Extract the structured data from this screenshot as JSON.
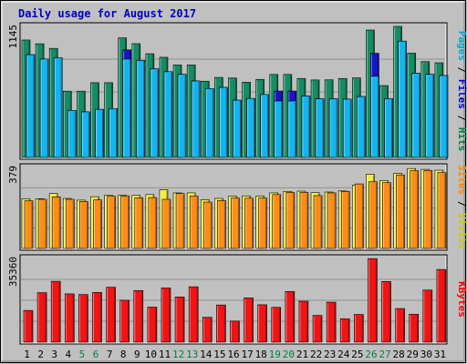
{
  "chart_data": {
    "type": "bar",
    "title": "Daily usage for August 2017",
    "categories": [
      "1",
      "2",
      "3",
      "4",
      "5",
      "6",
      "7",
      "8",
      "9",
      "10",
      "11",
      "12",
      "13",
      "14",
      "15",
      "16",
      "17",
      "18",
      "19",
      "20",
      "21",
      "22",
      "23",
      "24",
      "25",
      "26",
      "27",
      "28",
      "29",
      "30",
      "31"
    ],
    "weekend_days": [
      "5",
      "6",
      "12",
      "13",
      "19",
      "20",
      "26",
      "27"
    ],
    "panels": [
      {
        "name": "hits-files-pages",
        "ymax_label": "1145",
        "ylim": [
          0,
          1145
        ],
        "grid": true,
        "legend": [
          {
            "text": "Pages",
            "color": "#00aacc"
          },
          {
            "text": " / ",
            "color": "#000000"
          },
          {
            "text": "Files",
            "color": "#0000cc"
          },
          {
            "text": " / ",
            "color": "#000000"
          },
          {
            "text": "Hits",
            "color": "#008040"
          }
        ],
        "series": [
          {
            "name": "Hits",
            "color": "#148c64",
            "values": [
              1026,
              993,
              953,
              579,
              579,
              653,
              653,
              1045,
              994,
              906,
              875,
              808,
              808,
              666,
              699,
              694,
              657,
              682,
              725,
              725,
              690,
              677,
              678,
              690,
              695,
              1113,
              628,
              1145,
              911,
              837,
              827
            ]
          },
          {
            "name": "Files",
            "color": "#1414c8",
            "values": [
              898,
              860,
              872,
              411,
              398,
              420,
              427,
              940,
              848,
              774,
              749,
              726,
              668,
              602,
              612,
              500,
              515,
              550,
              580,
              580,
              537,
              512,
              512,
              509,
              532,
              910,
              514,
              1016,
              735,
              726,
              716
            ]
          },
          {
            "name": "Pages",
            "color": "#14b4f0",
            "values": [
              898,
              860,
              872,
              411,
              398,
              420,
              427,
              859,
              848,
              774,
              749,
              726,
              668,
              602,
              612,
              500,
              515,
              550,
              493,
              493,
              537,
              512,
              512,
              509,
              532,
              709,
              514,
              1016,
              735,
              726,
              716
            ]
          }
        ]
      },
      {
        "name": "visits-sites",
        "ymax_label": "379",
        "ylim": [
          0,
          379
        ],
        "grid": true,
        "legend": [
          {
            "text": "Sites",
            "color": "#ff8800"
          },
          {
            "text": " / ",
            "color": "#000000"
          },
          {
            "text": "Visits",
            "color": "#cccc00"
          }
        ],
        "series": [
          {
            "name": "Visits",
            "color": "#f0f03c",
            "values": [
              232,
              233,
              257,
              234,
              226,
              242,
              249,
              249,
              248,
              252,
              275,
              260,
              260,
              228,
              234,
              245,
              246,
              245,
              260,
              267,
              268,
              261,
              264,
              269,
              296,
              347,
              317,
              351,
              374,
              370,
              366
            ]
          },
          {
            "name": "Sites",
            "color": "#ff8c14",
            "values": [
              223,
              230,
              241,
              230,
              220,
              227,
              244,
              246,
              237,
              238,
              230,
              257,
              245,
              217,
              224,
              236,
              235,
              236,
              252,
              262,
              262,
              247,
              260,
              267,
              302,
              312,
              308,
              344,
              364,
              365,
              355
            ]
          }
        ]
      },
      {
        "name": "kbytes",
        "ymax_label": "35360",
        "ylim": [
          0,
          35360
        ],
        "grid": true,
        "legend": [
          {
            "text": "KBytes",
            "color": "#ff0000"
          }
        ],
        "series": [
          {
            "name": "KBytes",
            "color": "#f01414",
            "values": [
              13400,
              20900,
              25700,
              20400,
              20100,
              21000,
              23200,
              17700,
              21800,
              14800,
              22900,
              19100,
              23400,
              10500,
              15700,
              8900,
              18700,
              15800,
              14700,
              21400,
              17300,
              11300,
              16900,
              9900,
              11700,
              35300,
              25600,
              14200,
              11800,
              22000,
              30700
            ]
          }
        ]
      }
    ]
  }
}
